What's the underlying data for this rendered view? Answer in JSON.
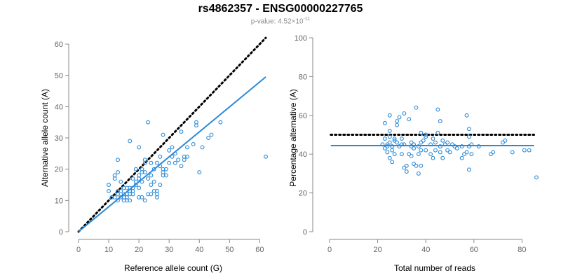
{
  "title": "rs4862357 - ENSG00000227765",
  "subtitle": {
    "prefix": "p-value: 4.52×10",
    "exponent": "-11"
  },
  "colors": {
    "points": "#2b8ad8",
    "fit": "#2b8ad8",
    "reference": "#000000",
    "axis": "#888888"
  },
  "chart_data": [
    {
      "type": "scatter",
      "name": "allele-counts",
      "xlabel": "Reference allele count (G)",
      "ylabel": "Alternative allele count (A)",
      "xlim": [
        0,
        62
      ],
      "ylim": [
        0,
        60
      ],
      "xticks": [
        0,
        10,
        20,
        30,
        40,
        50,
        60
      ],
      "yticks": [
        0,
        10,
        20,
        30,
        40,
        50,
        60
      ],
      "reference_line": {
        "style": "dotted",
        "x": [
          0,
          62
        ],
        "y": [
          0,
          62
        ]
      },
      "fit_line": {
        "style": "solid",
        "x": [
          0,
          62
        ],
        "y": [
          0,
          49.5
        ]
      },
      "points": [
        [
          12,
          11
        ],
        [
          13,
          10
        ],
        [
          13,
          12
        ],
        [
          14,
          11
        ],
        [
          14,
          13
        ],
        [
          15,
          10
        ],
        [
          15,
          11
        ],
        [
          15,
          12
        ],
        [
          16,
          11
        ],
        [
          16,
          10
        ],
        [
          17,
          12
        ],
        [
          17,
          13
        ],
        [
          17,
          10
        ],
        [
          18,
          12
        ],
        [
          18,
          14
        ],
        [
          19,
          15
        ],
        [
          19,
          16
        ],
        [
          20,
          14
        ],
        [
          20,
          18
        ],
        [
          20,
          17
        ],
        [
          21,
          11
        ],
        [
          21,
          16
        ],
        [
          22,
          19
        ],
        [
          22,
          10
        ],
        [
          23,
          12
        ],
        [
          23,
          17
        ],
        [
          24,
          15
        ],
        [
          24,
          12
        ],
        [
          25,
          13
        ],
        [
          25,
          16
        ],
        [
          26,
          11
        ],
        [
          26,
          13
        ],
        [
          27,
          15
        ],
        [
          27,
          21
        ],
        [
          28,
          18
        ],
        [
          28,
          19
        ],
        [
          29,
          20
        ],
        [
          30,
          26
        ],
        [
          31,
          24
        ],
        [
          32,
          22
        ],
        [
          33,
          23
        ],
        [
          34,
          21
        ],
        [
          35,
          23
        ],
        [
          36,
          24
        ],
        [
          38,
          28
        ],
        [
          39,
          34
        ],
        [
          39,
          35
        ],
        [
          40,
          19
        ],
        [
          41,
          27
        ],
        [
          43,
          30
        ],
        [
          44,
          31
        ],
        [
          47,
          35
        ],
        [
          62,
          24
        ],
        [
          13,
          19
        ],
        [
          12,
          18
        ],
        [
          12,
          17
        ],
        [
          10,
          15
        ],
        [
          10,
          13
        ],
        [
          11,
          11
        ],
        [
          13,
          23
        ],
        [
          17,
          29
        ],
        [
          22,
          22
        ],
        [
          23,
          35
        ],
        [
          20,
          27
        ],
        [
          21,
          19
        ],
        [
          25,
          20
        ],
        [
          26,
          22
        ],
        [
          27,
          24
        ],
        [
          28,
          31
        ],
        [
          30,
          22
        ],
        [
          32,
          25
        ],
        [
          34,
          32
        ],
        [
          18,
          13
        ],
        [
          19,
          20
        ],
        [
          24,
          18
        ],
        [
          29,
          18
        ],
        [
          16,
          14
        ],
        [
          14,
          16
        ],
        [
          15,
          14
        ],
        [
          21,
          20
        ],
        [
          22,
          23
        ],
        [
          18,
          17
        ],
        [
          17,
          14
        ],
        [
          26,
          12
        ],
        [
          31,
          27
        ],
        [
          35,
          24
        ],
        [
          36,
          27
        ],
        [
          16,
          12
        ],
        [
          13,
          13
        ],
        [
          20,
          11
        ],
        [
          24,
          22
        ],
        [
          28,
          20
        ]
      ]
    },
    {
      "type": "scatter",
      "name": "percentage-alternative",
      "xlabel": "Total number of reads",
      "ylabel": "Percentage alternative (A)",
      "xlim": [
        0,
        86
      ],
      "ylim": [
        0,
        100
      ],
      "xticks": [
        0,
        20,
        40,
        60,
        80
      ],
      "yticks": [
        0,
        20,
        40,
        60,
        80,
        100
      ],
      "reference_line": {
        "style": "dotted",
        "y": 50
      },
      "fit_line": {
        "style": "solid",
        "y": 44.4
      },
      "points": [
        [
          22,
          45
        ],
        [
          23,
          48
        ],
        [
          23,
          43
        ],
        [
          23,
          56
        ],
        [
          24,
          44
        ],
        [
          24,
          41
        ],
        [
          24,
          45
        ],
        [
          25,
          46
        ],
        [
          25,
          49
        ],
        [
          25,
          52
        ],
        [
          25,
          60
        ],
        [
          25,
          38
        ],
        [
          26,
          44
        ],
        [
          26,
          42
        ],
        [
          26,
          36
        ],
        [
          27,
          48
        ],
        [
          27,
          40
        ],
        [
          27,
          47
        ],
        [
          28,
          46
        ],
        [
          28,
          57
        ],
        [
          28,
          55
        ],
        [
          29,
          59
        ],
        [
          29,
          44
        ],
        [
          30,
          40
        ],
        [
          30,
          45
        ],
        [
          30,
          48
        ],
        [
          31,
          61
        ],
        [
          31,
          33
        ],
        [
          31,
          45
        ],
        [
          32,
          34
        ],
        [
          32,
          31
        ],
        [
          33,
          40
        ],
        [
          33,
          58
        ],
        [
          34,
          46
        ],
        [
          34,
          44
        ],
        [
          35,
          45
        ],
        [
          35,
          35
        ],
        [
          36,
          64
        ],
        [
          36,
          34
        ],
        [
          37,
          44
        ],
        [
          37,
          30
        ],
        [
          37,
          40
        ],
        [
          38,
          46
        ],
        [
          38,
          34
        ],
        [
          38,
          51
        ],
        [
          38,
          42
        ],
        [
          39,
          47
        ],
        [
          40,
          49
        ],
        [
          40,
          50
        ],
        [
          42,
          45
        ],
        [
          42,
          40
        ],
        [
          43,
          48
        ],
        [
          43,
          38
        ],
        [
          44,
          42
        ],
        [
          44,
          46
        ],
        [
          45,
          51
        ],
        [
          45,
          63
        ],
        [
          46,
          57
        ],
        [
          46,
          44
        ],
        [
          46,
          41
        ],
        [
          47,
          47
        ],
        [
          47,
          38
        ],
        [
          49,
          46
        ],
        [
          49,
          42
        ],
        [
          50,
          41
        ],
        [
          51,
          45
        ],
        [
          52,
          44
        ],
        [
          55,
          38
        ],
        [
          56,
          40
        ],
        [
          57,
          41
        ],
        [
          57,
          60
        ],
        [
          58,
          44
        ],
        [
          58,
          49
        ],
        [
          58,
          53
        ],
        [
          59,
          40
        ],
        [
          58,
          32
        ],
        [
          62,
          44
        ],
        [
          67,
          40
        ],
        [
          68,
          41
        ],
        [
          72,
          46
        ],
        [
          73,
          47
        ],
        [
          76,
          41
        ],
        [
          81,
          42
        ],
        [
          83,
          42
        ],
        [
          86,
          28
        ],
        [
          34,
          39
        ],
        [
          35,
          43
        ],
        [
          40,
          42
        ],
        [
          48,
          45
        ],
        [
          53,
          43
        ],
        [
          55,
          44
        ],
        [
          59,
          45
        ]
      ]
    }
  ]
}
